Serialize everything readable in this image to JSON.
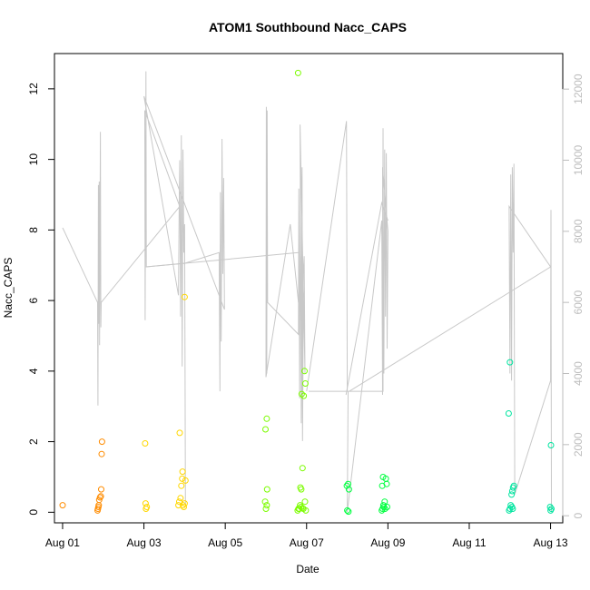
{
  "chart_data": {
    "type": "scatter",
    "title": "ATOM1 Southbound Nacc_CAPS",
    "xlabel": "Date",
    "ylabel": "Nacc_CAPS",
    "xlim": [
      -0.2,
      12.3
    ],
    "ylim": [
      -0.3,
      13.0
    ],
    "ylim_right": [
      -200,
      13000
    ],
    "x_ticks": [
      {
        "value": 0,
        "label": "Aug 01"
      },
      {
        "value": 2,
        "label": "Aug 03"
      },
      {
        "value": 4,
        "label": "Aug 05"
      },
      {
        "value": 6,
        "label": "Aug 07"
      },
      {
        "value": 8,
        "label": "Aug 09"
      },
      {
        "value": 10,
        "label": "Aug 11"
      },
      {
        "value": 12,
        "label": "Aug 13"
      }
    ],
    "y_ticks": [
      0,
      2,
      4,
      6,
      8,
      10,
      12
    ],
    "y_ticks_right": [
      0,
      2000,
      4000,
      6000,
      8000,
      10000,
      12000
    ],
    "right_axis_color": "#bdbdbd",
    "line_color": "#c8c8c8",
    "series": [
      {
        "kind": "points",
        "color": "#ff8c00",
        "points": [
          [
            0.0,
            0.2
          ],
          [
            0.86,
            0.05
          ],
          [
            0.87,
            0.1
          ],
          [
            0.88,
            0.15
          ],
          [
            0.89,
            0.2
          ],
          [
            0.9,
            0.35
          ],
          [
            0.92,
            0.42
          ],
          [
            0.94,
            0.45
          ],
          [
            0.95,
            0.65
          ],
          [
            0.96,
            1.65
          ],
          [
            0.97,
            2.0
          ]
        ]
      },
      {
        "kind": "points",
        "color": "#ffd700",
        "points": [
          [
            2.05,
            0.1
          ],
          [
            2.07,
            0.15
          ],
          [
            2.04,
            0.25
          ],
          [
            2.03,
            1.95
          ],
          [
            2.85,
            0.2
          ],
          [
            2.87,
            0.3
          ],
          [
            2.9,
            0.4
          ],
          [
            2.92,
            0.75
          ],
          [
            2.94,
            0.95
          ],
          [
            2.96,
            0.2
          ],
          [
            2.98,
            0.15
          ],
          [
            3.0,
            0.25
          ],
          [
            3.02,
            0.9
          ],
          [
            2.88,
            2.25
          ],
          [
            2.95,
            1.15
          ],
          [
            3.0,
            6.1
          ]
        ]
      },
      {
        "kind": "points",
        "color": "#7cfc00",
        "points": [
          [
            5.0,
            0.1
          ],
          [
            5.02,
            0.2
          ],
          [
            4.98,
            0.3
          ],
          [
            5.03,
            0.65
          ],
          [
            4.99,
            2.35
          ],
          [
            5.02,
            2.65
          ],
          [
            5.78,
            0.05
          ],
          [
            5.8,
            0.1
          ],
          [
            5.82,
            0.1
          ],
          [
            5.84,
            0.2
          ],
          [
            5.85,
            0.7
          ],
          [
            5.87,
            0.65
          ],
          [
            5.88,
            3.35
          ],
          [
            5.9,
            1.25
          ],
          [
            5.93,
            3.3
          ],
          [
            5.95,
            4.0
          ],
          [
            5.97,
            3.65
          ],
          [
            5.92,
            0.1
          ],
          [
            5.96,
            0.3
          ],
          [
            5.98,
            0.05
          ],
          [
            5.79,
            12.45
          ],
          [
            5.86,
            0.15
          ],
          [
            5.9,
            0.12
          ]
        ]
      },
      {
        "kind": "points",
        "color": "#00ff40",
        "points": [
          [
            7.0,
            0.05
          ],
          [
            7.03,
            0.02
          ],
          [
            6.99,
            0.75
          ],
          [
            7.02,
            0.8
          ],
          [
            7.04,
            0.65
          ],
          [
            7.85,
            0.05
          ],
          [
            7.87,
            0.1
          ],
          [
            7.9,
            0.15
          ],
          [
            7.92,
            0.3
          ],
          [
            7.86,
            0.75
          ],
          [
            7.88,
            1.0
          ],
          [
            7.95,
            0.95
          ],
          [
            7.97,
            0.8
          ],
          [
            7.93,
            0.1
          ],
          [
            7.98,
            0.15
          ],
          [
            7.89,
            0.2
          ]
        ]
      },
      {
        "kind": "points",
        "color": "#00e5a0",
        "points": [
          [
            10.98,
            0.05
          ],
          [
            11.0,
            0.1
          ],
          [
            11.02,
            0.2
          ],
          [
            11.04,
            0.5
          ],
          [
            11.06,
            0.6
          ],
          [
            11.08,
            0.7
          ],
          [
            11.1,
            0.75
          ],
          [
            11.05,
            0.15
          ],
          [
            11.07,
            0.1
          ],
          [
            10.97,
            2.8
          ],
          [
            11.0,
            4.25
          ],
          [
            12.0,
            0.05
          ],
          [
            12.02,
            0.1
          ],
          [
            11.99,
            0.15
          ],
          [
            12.01,
            1.9
          ]
        ]
      },
      {
        "kind": "line",
        "axis": "right",
        "color": "#c8c8c8",
        "points": [
          [
            0.0,
            8100
          ],
          [
            0.86,
            6000
          ],
          [
            0.87,
            3100
          ],
          [
            0.88,
            9300
          ],
          [
            0.89,
            5400
          ],
          [
            0.9,
            9400
          ],
          [
            0.91,
            4800
          ],
          [
            0.93,
            10800
          ],
          [
            0.94,
            5300
          ],
          [
            0.95,
            6000
          ],
          [
            2.88,
            8700
          ],
          [
            2.02,
            11400
          ],
          [
            2.03,
            5500
          ],
          [
            2.05,
            12500
          ],
          [
            2.06,
            7000
          ],
          [
            3.0,
            7100
          ],
          [
            3.85,
            7400
          ],
          [
            3.87,
            3500
          ],
          [
            3.88,
            9100
          ],
          [
            3.9,
            4900
          ],
          [
            3.92,
            10600
          ],
          [
            3.94,
            6800
          ],
          [
            3.96,
            9500
          ],
          [
            3.98,
            5800
          ],
          [
            2.0,
            11800
          ],
          [
            2.85,
            6200
          ],
          [
            2.87,
            9000
          ],
          [
            2.88,
            10000
          ],
          [
            2.9,
            5600
          ],
          [
            2.92,
            10700
          ],
          [
            2.94,
            4200
          ],
          [
            2.96,
            10300
          ],
          [
            2.98,
            7400
          ],
          [
            3.0,
            8200
          ],
          [
            3.02,
            300
          ]
        ]
      },
      {
        "kind": "line",
        "axis": "right",
        "color": "#c8c8c8",
        "points": [
          [
            5.8,
            7400
          ],
          [
            2.05,
            7000
          ]
        ]
      },
      {
        "kind": "line",
        "axis": "right",
        "color": "#c8c8c8",
        "points": [
          [
            5.0,
            3900
          ],
          [
            5.01,
            11500
          ],
          [
            5.02,
            4000
          ],
          [
            5.03,
            11400
          ],
          [
            5.04,
            6000
          ],
          [
            5.8,
            5100
          ],
          [
            5.81,
            9200
          ],
          [
            5.83,
            3300
          ],
          [
            5.85,
            9800
          ],
          [
            5.87,
            2600
          ],
          [
            5.89,
            9800
          ],
          [
            5.9,
            4500
          ],
          [
            5.92,
            6800
          ],
          [
            5.94,
            7300
          ],
          [
            5.96,
            4000
          ],
          [
            5.84,
            11000
          ],
          [
            5.86,
            5500
          ],
          [
            5.88,
            7300
          ],
          [
            5.9,
            2100
          ],
          [
            5.92,
            6100
          ],
          [
            5.95,
            6300
          ]
        ]
      },
      {
        "kind": "line",
        "axis": "right",
        "color": "#c8c8c8",
        "points": [
          [
            5.0,
            3900
          ],
          [
            5.6,
            8200
          ],
          [
            5.8,
            6000
          ]
        ]
      },
      {
        "kind": "line",
        "axis": "right",
        "color": "#c8c8c8",
        "points": [
          [
            6.0,
            3500
          ],
          [
            6.98,
            11100
          ],
          [
            7.0,
            3500
          ],
          [
            7.02,
            3500
          ],
          [
            7.0,
            100
          ],
          [
            7.85,
            8300
          ],
          [
            7.87,
            3400
          ],
          [
            7.88,
            10900
          ],
          [
            7.9,
            4000
          ],
          [
            7.92,
            10300
          ],
          [
            7.94,
            5600
          ],
          [
            7.96,
            10200
          ],
          [
            7.98,
            4700
          ],
          [
            8.0,
            8000
          ],
          [
            7.87,
            9800
          ],
          [
            7.88,
            3500
          ],
          [
            6.05,
            3500
          ]
        ]
      },
      {
        "kind": "line",
        "axis": "right",
        "color": "#c8c8c8",
        "points": [
          [
            7.05,
            3500
          ],
          [
            12.0,
            7000
          ],
          [
            10.98,
            8700
          ],
          [
            11.0,
            4000
          ],
          [
            11.02,
            9600
          ],
          [
            11.04,
            3800
          ],
          [
            11.06,
            9800
          ],
          [
            11.08,
            7400
          ],
          [
            11.1,
            9900
          ],
          [
            11.12,
            600
          ],
          [
            12.0,
            3800
          ],
          [
            12.01,
            8600
          ],
          [
            12.02,
            100
          ]
        ]
      },
      {
        "kind": "line",
        "axis": "right",
        "color": "#c8c8c8",
        "points": [
          [
            8.0,
            8300
          ],
          [
            7.85,
            8800
          ],
          [
            6.97,
            3400
          ]
        ]
      }
    ]
  }
}
